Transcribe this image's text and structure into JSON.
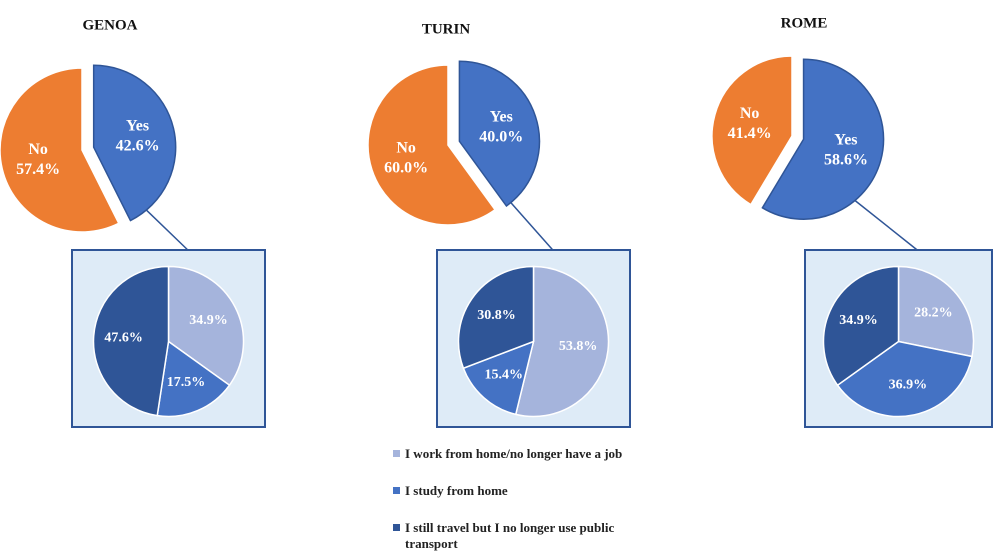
{
  "chart_data": [
    {
      "type": "pie",
      "title": "GENOA",
      "categories": [
        "Yes",
        "No"
      ],
      "values": [
        42.6,
        57.4
      ],
      "value_labels": [
        "42.6%",
        "57.4%"
      ],
      "colors": [
        "#4472c4",
        "#ed7d31"
      ],
      "breakdown": {
        "values": [
          34.9,
          17.5,
          47.6
        ],
        "value_labels": [
          "34.9%",
          "17.5%",
          "47.6%"
        ]
      }
    },
    {
      "type": "pie",
      "title": "TURIN",
      "categories": [
        "Yes",
        "No"
      ],
      "values": [
        40.0,
        60.0
      ],
      "value_labels": [
        "40.0%",
        "60.0%"
      ],
      "colors": [
        "#4472c4",
        "#ed7d31"
      ],
      "breakdown": {
        "values": [
          53.8,
          15.4,
          30.8
        ],
        "value_labels": [
          "53.8%",
          "15.4%",
          "30.8%"
        ]
      }
    },
    {
      "type": "pie",
      "title": "ROME",
      "categories": [
        "Yes",
        "No"
      ],
      "values": [
        58.6,
        41.4
      ],
      "value_labels": [
        "58.6%",
        "41.4%"
      ],
      "colors": [
        "#4472c4",
        "#ed7d31"
      ],
      "breakdown": {
        "values": [
          28.2,
          36.9,
          34.9
        ],
        "value_labels": [
          "28.2%",
          "36.9%",
          "34.9%"
        ]
      }
    }
  ],
  "legend": {
    "names": [
      "I work from home/no longer have a job",
      "I study from home",
      "I still travel but I no longer use public transport"
    ],
    "colors": [
      "#a5b4dc",
      "#4472c4",
      "#2f5597"
    ]
  }
}
